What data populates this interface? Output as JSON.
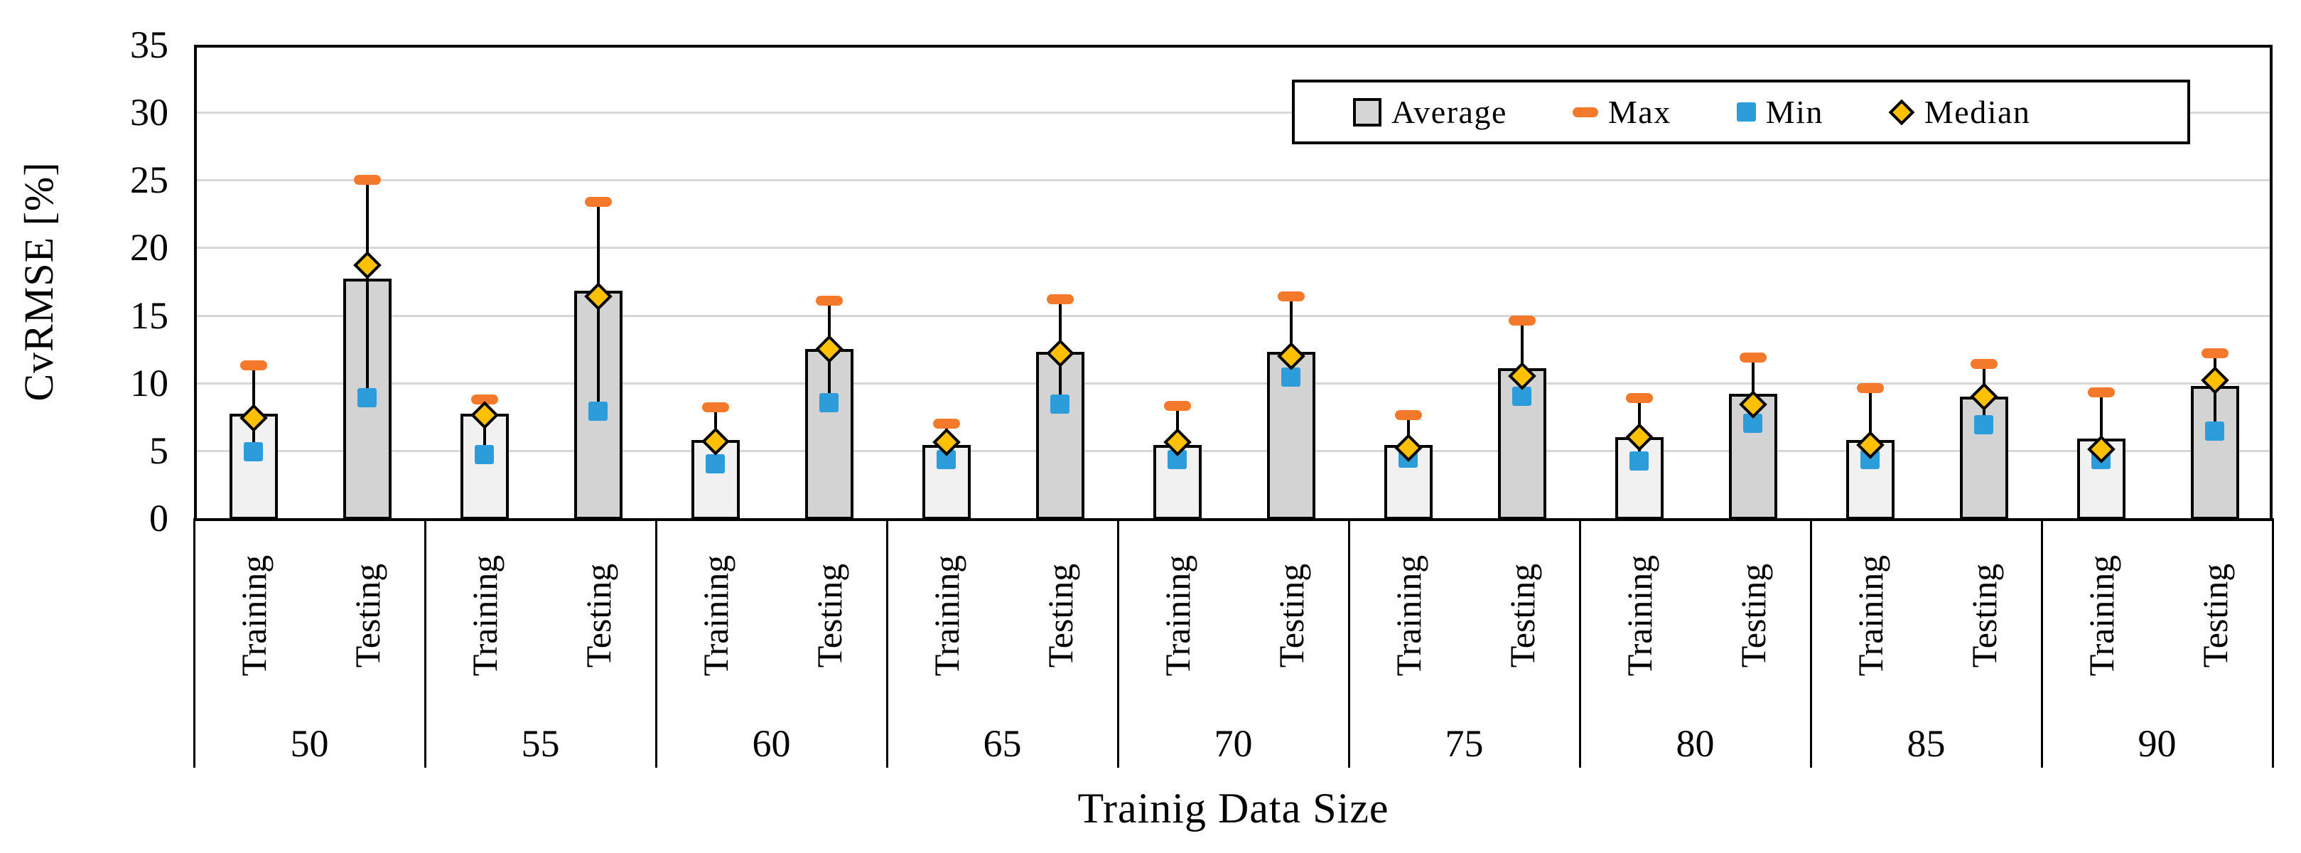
{
  "chart_data": {
    "type": "bar",
    "title": "",
    "xlabel": "Trainig Data Size",
    "ylabel": "CvRMSE [%]",
    "ylim": [
      0,
      35
    ],
    "yticks": [
      0,
      5,
      10,
      15,
      20,
      25,
      30,
      35
    ],
    "grid": true,
    "legend_position": "top-right-inside",
    "bar_categories": [
      "Training",
      "Testing"
    ],
    "legend": [
      {
        "label": "Average",
        "marker": "barswatch"
      },
      {
        "label": "Max",
        "marker": "dash"
      },
      {
        "label": "Min",
        "marker": "square"
      },
      {
        "label": "Median",
        "marker": "diamond"
      }
    ],
    "groups": [
      {
        "size": "50",
        "bars": [
          {
            "category": "Training",
            "average": 7.7,
            "max": 11.3,
            "min": 4.9,
            "median": 7.4
          },
          {
            "category": "Testing",
            "average": 17.7,
            "max": 25.0,
            "min": 8.9,
            "median": 18.7
          }
        ]
      },
      {
        "size": "55",
        "bars": [
          {
            "category": "Training",
            "average": 7.7,
            "max": 8.8,
            "min": 4.7,
            "median": 7.6
          },
          {
            "category": "Testing",
            "average": 16.8,
            "max": 23.4,
            "min": 7.9,
            "median": 16.4
          }
        ]
      },
      {
        "size": "60",
        "bars": [
          {
            "category": "Training",
            "average": 5.8,
            "max": 8.2,
            "min": 4.0,
            "median": 5.7
          },
          {
            "category": "Testing",
            "average": 12.5,
            "max": 16.1,
            "min": 8.5,
            "median": 12.5
          }
        ]
      },
      {
        "size": "65",
        "bars": [
          {
            "category": "Training",
            "average": 5.4,
            "max": 7.0,
            "min": 4.3,
            "median": 5.6
          },
          {
            "category": "Testing",
            "average": 12.3,
            "max": 16.2,
            "min": 8.4,
            "median": 12.2
          }
        ]
      },
      {
        "size": "70",
        "bars": [
          {
            "category": "Training",
            "average": 5.4,
            "max": 8.3,
            "min": 4.3,
            "median": 5.6
          },
          {
            "category": "Testing",
            "average": 12.3,
            "max": 16.4,
            "min": 10.4,
            "median": 12.0
          }
        ]
      },
      {
        "size": "75",
        "bars": [
          {
            "category": "Training",
            "average": 5.4,
            "max": 7.6,
            "min": 4.4,
            "median": 5.2
          },
          {
            "category": "Testing",
            "average": 11.1,
            "max": 14.6,
            "min": 9.0,
            "median": 10.5
          }
        ]
      },
      {
        "size": "80",
        "bars": [
          {
            "category": "Training",
            "average": 6.0,
            "max": 8.9,
            "min": 4.2,
            "median": 6.0
          },
          {
            "category": "Testing",
            "average": 9.2,
            "max": 11.9,
            "min": 7.0,
            "median": 8.4
          }
        ]
      },
      {
        "size": "85",
        "bars": [
          {
            "category": "Training",
            "average": 5.8,
            "max": 9.6,
            "min": 4.3,
            "median": 5.4
          },
          {
            "category": "Testing",
            "average": 9.0,
            "max": 11.4,
            "min": 6.9,
            "median": 9.0
          }
        ]
      },
      {
        "size": "90",
        "bars": [
          {
            "category": "Training",
            "average": 5.9,
            "max": 9.3,
            "min": 4.3,
            "median": 5.1
          },
          {
            "category": "Testing",
            "average": 9.8,
            "max": 12.2,
            "min": 6.4,
            "median": 10.2
          }
        ]
      }
    ],
    "colors": {
      "training_fill": "#f1f1f1",
      "testing_fill": "#d3d3d3",
      "average_swatch_fill": "#d6d6d6",
      "max_orange": "#f5792a",
      "min_blue": "#2d9cdb",
      "median_gold": "#ffc000",
      "gridline": "#d7d7d7",
      "axis": "#000000"
    }
  }
}
